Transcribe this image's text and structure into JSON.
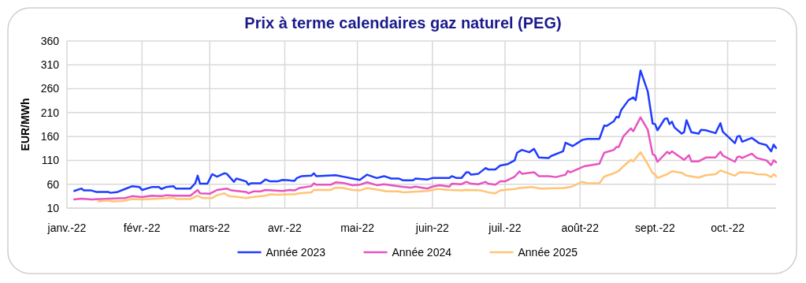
{
  "chart_data": {
    "type": "line",
    "title": "Prix à terme calendaires gaz naturel (PEG)",
    "ylabel": "EUR/MWh",
    "xlim": [
      "2022-01-01",
      "2022-10-21"
    ],
    "xticks": [
      {
        "value": "2022-01-01",
        "label": "janv.-22"
      },
      {
        "value": "2022-02-01",
        "label": "févr.-22"
      },
      {
        "value": "2022-03-01",
        "label": "mars-22"
      },
      {
        "value": "2022-04-01",
        "label": "avr.-22"
      },
      {
        "value": "2022-05-01",
        "label": "mai-22"
      },
      {
        "value": "2022-06-01",
        "label": "juin-22"
      },
      {
        "value": "2022-07-01",
        "label": "juil.-22"
      },
      {
        "value": "2022-08-01",
        "label": "août-22"
      },
      {
        "value": "2022-09-01",
        "label": "sept.-22"
      },
      {
        "value": "2022-10-01",
        "label": "oct.-22"
      }
    ],
    "ylim": [
      10,
      360
    ],
    "yticks": [
      10,
      60,
      110,
      160,
      210,
      260,
      310,
      360
    ],
    "grid": true,
    "legend": "bottom",
    "marker": "none",
    "line_style": "solid",
    "series": [
      {
        "name": "Année 2023",
        "color": "#1f3cff",
        "x": [
          "2022-01-04",
          "2022-01-07",
          "2022-01-08",
          "2022-01-11",
          "2022-01-13",
          "2022-01-18",
          "2022-01-19",
          "2022-01-22",
          "2022-01-25",
          "2022-01-28",
          "2022-01-31",
          "2022-02-01",
          "2022-02-05",
          "2022-02-08",
          "2022-02-09",
          "2022-02-11",
          "2022-02-14",
          "2022-02-15",
          "2022-02-21",
          "2022-02-23",
          "2022-02-24",
          "2022-02-25",
          "2022-02-28",
          "2022-03-02",
          "2022-03-04",
          "2022-03-07",
          "2022-03-08",
          "2022-03-11",
          "2022-03-12",
          "2022-03-16",
          "2022-03-17",
          "2022-03-18",
          "2022-03-22",
          "2022-03-24",
          "2022-03-26",
          "2022-03-29",
          "2022-03-31",
          "2022-04-03",
          "2022-04-05",
          "2022-04-06",
          "2022-04-08",
          "2022-04-12",
          "2022-04-13",
          "2022-04-14",
          "2022-04-22",
          "2022-04-26",
          "2022-04-29",
          "2022-05-02",
          "2022-05-05",
          "2022-05-09",
          "2022-05-12",
          "2022-05-15",
          "2022-05-18",
          "2022-05-20",
          "2022-05-24",
          "2022-05-25",
          "2022-05-30",
          "2022-06-01",
          "2022-06-08",
          "2022-06-09",
          "2022-06-11",
          "2022-06-13",
          "2022-06-15",
          "2022-06-16",
          "2022-06-17",
          "2022-06-20",
          "2022-06-23",
          "2022-06-24",
          "2022-06-27",
          "2022-06-29",
          "2022-07-02",
          "2022-07-05",
          "2022-07-06",
          "2022-07-08",
          "2022-07-11",
          "2022-07-13",
          "2022-07-15",
          "2022-07-19",
          "2022-07-20",
          "2022-07-25",
          "2022-07-26",
          "2022-07-29",
          "2022-08-02",
          "2022-08-04",
          "2022-08-09",
          "2022-08-11",
          "2022-08-12",
          "2022-08-15",
          "2022-08-16",
          "2022-08-17",
          "2022-08-18",
          "2022-08-21",
          "2022-08-23",
          "2022-08-24",
          "2022-08-26",
          "2022-08-29",
          "2022-08-31",
          "2022-09-01",
          "2022-09-02",
          "2022-09-05",
          "2022-09-06",
          "2022-09-07",
          "2022-09-08",
          "2022-09-09",
          "2022-09-12",
          "2022-09-13",
          "2022-09-14",
          "2022-09-16",
          "2022-09-19",
          "2022-09-20",
          "2022-09-22",
          "2022-09-24",
          "2022-09-26",
          "2022-09-28",
          "2022-09-29",
          "2022-10-04",
          "2022-10-05",
          "2022-10-06",
          "2022-10-07",
          "2022-10-11",
          "2022-10-14",
          "2022-10-17",
          "2022-10-19",
          "2022-10-20",
          "2022-10-21"
        ],
        "values": [
          46,
          51,
          47,
          47,
          44,
          44,
          42,
          44,
          50,
          56,
          54,
          48,
          54,
          54,
          50,
          54,
          56,
          51,
          51,
          62,
          78,
          61,
          61,
          81,
          76,
          83,
          82,
          65,
          72,
          66,
          59,
          62,
          62,
          70,
          66,
          66,
          69,
          68,
          67,
          73,
          77,
          78,
          83,
          77,
          79,
          75,
          72,
          69,
          80,
          73,
          77,
          72,
          72,
          68,
          68,
          72,
          70,
          73,
          73,
          77,
          73,
          73,
          85,
          85,
          80,
          82,
          94,
          91,
          91,
          99,
          102,
          110,
          126,
          132,
          127,
          134,
          116,
          115,
          119,
          129,
          147,
          140,
          153,
          155,
          155,
          183,
          182,
          192,
          201,
          200,
          215,
          236,
          242,
          236,
          298,
          254,
          187,
          186,
          173,
          197,
          198,
          186,
          191,
          179,
          166,
          169,
          194,
          169,
          166,
          174,
          173,
          170,
          167,
          188,
          170,
          146,
          160,
          161,
          149,
          157,
          146,
          142,
          129,
          143,
          136
        ]
      },
      {
        "name": "Année 2024",
        "color": "#e754c0",
        "x": [
          "2022-01-04",
          "2022-01-07",
          "2022-01-11",
          "2022-01-19",
          "2022-01-25",
          "2022-01-28",
          "2022-02-01",
          "2022-02-05",
          "2022-02-09",
          "2022-02-11",
          "2022-02-15",
          "2022-02-21",
          "2022-02-24",
          "2022-02-25",
          "2022-03-01",
          "2022-03-04",
          "2022-03-08",
          "2022-03-10",
          "2022-03-16",
          "2022-03-17",
          "2022-03-19",
          "2022-03-22",
          "2022-03-24",
          "2022-03-31",
          "2022-04-03",
          "2022-04-05",
          "2022-04-07",
          "2022-04-12",
          "2022-04-13",
          "2022-04-14",
          "2022-04-20",
          "2022-04-22",
          "2022-04-25",
          "2022-04-29",
          "2022-05-02",
          "2022-05-05",
          "2022-05-09",
          "2022-05-12",
          "2022-05-19",
          "2022-05-23",
          "2022-05-25",
          "2022-05-30",
          "2022-06-01",
          "2022-06-04",
          "2022-06-08",
          "2022-06-09",
          "2022-06-13",
          "2022-06-15",
          "2022-06-17",
          "2022-06-20",
          "2022-06-23",
          "2022-06-24",
          "2022-06-27",
          "2022-06-29",
          "2022-07-01",
          "2022-07-05",
          "2022-07-07",
          "2022-07-08",
          "2022-07-13",
          "2022-07-15",
          "2022-07-19",
          "2022-07-22",
          "2022-07-26",
          "2022-07-27",
          "2022-07-28",
          "2022-08-02",
          "2022-08-03",
          "2022-08-09",
          "2022-08-11",
          "2022-08-15",
          "2022-08-16",
          "2022-08-17",
          "2022-08-19",
          "2022-08-22",
          "2022-08-23",
          "2022-08-26",
          "2022-08-29",
          "2022-08-31",
          "2022-09-01",
          "2022-09-02",
          "2022-09-06",
          "2022-09-07",
          "2022-09-08",
          "2022-09-13",
          "2022-09-15",
          "2022-09-16",
          "2022-09-19",
          "2022-09-22",
          "2022-09-26",
          "2022-09-28",
          "2022-09-29",
          "2022-10-04",
          "2022-10-05",
          "2022-10-06",
          "2022-10-07",
          "2022-10-11",
          "2022-10-13",
          "2022-10-17",
          "2022-10-19",
          "2022-10-20",
          "2022-10-21"
        ],
        "values": [
          28,
          30,
          28,
          30,
          31,
          35,
          33,
          36,
          35,
          37,
          36,
          36,
          48,
          41,
          40,
          48,
          51,
          47,
          44,
          41,
          45,
          45,
          48,
          46,
          48,
          47,
          52,
          56,
          62,
          59,
          59,
          64,
          63,
          58,
          59,
          64,
          58,
          60,
          55,
          53,
          55,
          51,
          55,
          58,
          55,
          61,
          60,
          65,
          61,
          60,
          65,
          61,
          59,
          66,
          66,
          76,
          87,
          82,
          85,
          77,
          77,
          75,
          80,
          88,
          85,
          96,
          98,
          103,
          126,
          132,
          138,
          138,
          161,
          177,
          171,
          200,
          174,
          123,
          120,
          107,
          128,
          124,
          129,
          111,
          121,
          108,
          108,
          116,
          116,
          128,
          120,
          107,
          117,
          118,
          115,
          124,
          115,
          110,
          100,
          110,
          106
        ]
      },
      {
        "name": "Année 2025",
        "color": "#ffc477",
        "x": [
          "2022-01-14",
          "2022-01-18",
          "2022-01-20",
          "2022-01-24",
          "2022-01-28",
          "2022-02-01",
          "2022-02-08",
          "2022-02-14",
          "2022-02-15",
          "2022-02-21",
          "2022-02-24",
          "2022-02-26",
          "2022-03-02",
          "2022-03-04",
          "2022-03-07",
          "2022-03-09",
          "2022-03-13",
          "2022-03-16",
          "2022-03-20",
          "2022-03-24",
          "2022-03-26",
          "2022-03-29",
          "2022-04-03",
          "2022-04-05",
          "2022-04-07",
          "2022-04-12",
          "2022-04-13",
          "2022-04-20",
          "2022-04-22",
          "2022-04-25",
          "2022-04-29",
          "2022-05-02",
          "2022-05-05",
          "2022-05-11",
          "2022-05-13",
          "2022-05-18",
          "2022-05-20",
          "2022-05-30",
          "2022-06-03",
          "2022-06-08",
          "2022-06-13",
          "2022-06-15",
          "2022-06-21",
          "2022-06-25",
          "2022-06-27",
          "2022-06-29",
          "2022-07-05",
          "2022-07-07",
          "2022-07-12",
          "2022-07-16",
          "2022-07-25",
          "2022-07-28",
          "2022-08-02",
          "2022-08-04",
          "2022-08-09",
          "2022-08-11",
          "2022-08-15",
          "2022-08-17",
          "2022-08-19",
          "2022-08-22",
          "2022-08-23",
          "2022-08-26",
          "2022-08-29",
          "2022-08-31",
          "2022-09-01",
          "2022-09-02",
          "2022-09-06",
          "2022-09-08",
          "2022-09-12",
          "2022-09-14",
          "2022-09-19",
          "2022-09-22",
          "2022-09-26",
          "2022-09-28",
          "2022-10-04",
          "2022-10-06",
          "2022-10-11",
          "2022-10-13",
          "2022-10-17",
          "2022-10-19",
          "2022-10-20",
          "2022-10-21"
        ],
        "values": [
          24,
          26,
          24,
          25,
          29,
          28,
          30,
          32,
          29,
          29,
          36,
          31,
          31,
          37,
          41,
          35,
          33,
          31,
          34,
          36,
          39,
          38,
          39,
          39,
          41,
          43,
          48,
          48,
          53,
          52,
          48,
          47,
          52,
          47,
          45,
          45,
          43,
          46,
          50,
          48,
          47,
          48,
          47,
          42,
          41,
          47,
          50,
          52,
          54,
          51,
          52,
          54,
          65,
          62,
          62,
          76,
          83,
          88,
          98,
          111,
          108,
          127,
          102,
          83,
          81,
          73,
          81,
          87,
          84,
          78,
          74,
          79,
          81,
          89,
          78,
          85,
          84,
          81,
          80,
          75,
          81,
          77
        ]
      }
    ]
  }
}
